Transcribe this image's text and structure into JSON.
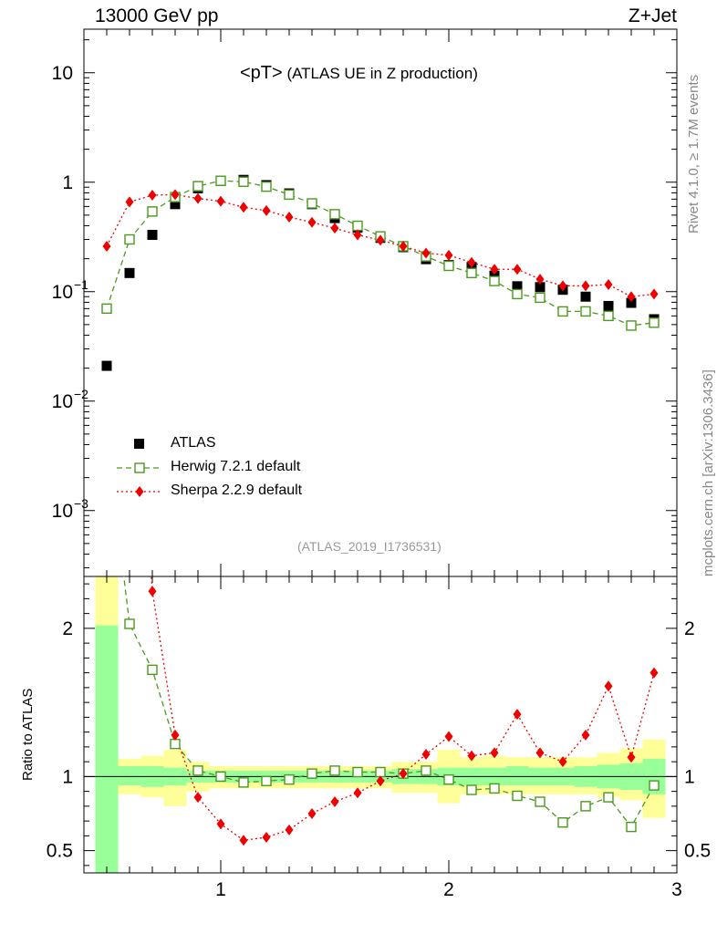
{
  "header": {
    "energy_label": "13000 GeV pp",
    "process_label": "Z+Jet"
  },
  "title": {
    "main": "<pT>",
    "sub": "(ATLAS UE in Z production)"
  },
  "analysis_id": "(ATLAS_2019_I1736531)",
  "side_texts": {
    "rivet": "Rivet 4.1.0, ≥ 1.7M events",
    "mcplots": "mcplots.cern.ch [arXiv:1306.3436]"
  },
  "legend": {
    "items": [
      {
        "name": "ATLAS",
        "color": "#000000",
        "marker": "filled-square"
      },
      {
        "name": "Herwig 7.2.1 default",
        "color": "#4a9a1e",
        "marker": "open-square"
      },
      {
        "name": "Sherpa 2.2.9 default",
        "color": "#ee0000",
        "marker": "filled-diamond"
      }
    ]
  },
  "chart_data": {
    "type": "scatter",
    "xlim": [
      0.4,
      3.0
    ],
    "main_panel": {
      "yscale": "log",
      "ylim": [
        0.00025,
        25
      ],
      "ytick_labels": [
        {
          "value": 10,
          "label": "10"
        },
        {
          "value": 1,
          "label": "1"
        },
        {
          "value": 0.1,
          "label": "10",
          "exp": "−1"
        },
        {
          "value": 0.01,
          "label": "10",
          "exp": "−2"
        },
        {
          "value": 0.001,
          "label": "10",
          "exp": "−3"
        }
      ]
    },
    "ratio_panel": {
      "ylabel": "Ratio to ATLAS",
      "ylim": [
        0.35,
        2.35
      ],
      "ytick_labels": [
        {
          "value": 2,
          "label": "2"
        },
        {
          "value": 1,
          "label": "1"
        },
        {
          "value": 0.5,
          "label": "0.5"
        }
      ]
    },
    "xtick_labels": [
      {
        "value": 1,
        "label": "1"
      },
      {
        "value": 2,
        "label": "2"
      },
      {
        "value": 3,
        "label": "3"
      }
    ],
    "x": [
      0.5,
      0.6,
      0.7,
      0.8,
      0.9,
      1.0,
      1.1,
      1.2,
      1.3,
      1.4,
      1.5,
      1.6,
      1.7,
      1.8,
      1.9,
      2.0,
      2.1,
      2.2,
      2.3,
      2.4,
      2.5,
      2.6,
      2.7,
      2.8,
      2.9
    ],
    "series": [
      {
        "name": "ATLAS",
        "values": [
          0.021,
          0.148,
          0.33,
          0.63,
          0.88,
          1.03,
          1.05,
          0.94,
          0.79,
          0.63,
          0.47,
          0.385,
          0.31,
          0.255,
          0.198,
          0.175,
          0.168,
          0.14,
          0.112,
          0.11,
          0.104,
          0.09,
          0.074,
          0.079,
          0.056
        ]
      },
      {
        "name": "Herwig 7.2.1 default",
        "values": [
          0.07,
          0.3,
          0.54,
          0.73,
          0.92,
          1.03,
          1.01,
          0.91,
          0.77,
          0.64,
          0.51,
          0.4,
          0.32,
          0.26,
          0.21,
          0.172,
          0.148,
          0.125,
          0.095,
          0.088,
          0.066,
          0.066,
          0.06,
          0.049,
          0.052
        ]
      },
      {
        "name": "Sherpa 2.2.9 default",
        "values": [
          0.26,
          0.66,
          0.76,
          0.77,
          0.71,
          0.67,
          0.59,
          0.55,
          0.48,
          0.43,
          0.38,
          0.33,
          0.295,
          0.26,
          0.225,
          0.215,
          0.185,
          0.16,
          0.16,
          0.13,
          0.113,
          0.113,
          0.116,
          0.09,
          0.095
        ]
      }
    ],
    "ratio_series": [
      {
        "name": "Herwig 7.2.1 default",
        "values": [
          3.3,
          2.03,
          1.72,
          1.22,
          1.04,
          1.0,
          0.96,
          0.97,
          0.98,
          1.02,
          1.04,
          1.03,
          1.03,
          1.02,
          1.04,
          0.98,
          0.91,
          0.92,
          0.87,
          0.83,
          0.69,
          0.8,
          0.86,
          0.66,
          0.94
        ]
      },
      {
        "name": "Sherpa 2.2.9 default",
        "values": [
          12.0,
          4.4,
          2.25,
          1.28,
          0.86,
          0.68,
          0.57,
          0.59,
          0.64,
          0.75,
          0.83,
          0.89,
          0.97,
          1.02,
          1.15,
          1.27,
          1.14,
          1.16,
          1.42,
          1.16,
          1.1,
          1.28,
          1.61,
          1.13,
          1.7
        ]
      }
    ],
    "ratio_band_stat": [
      [
        0.3,
        2.02
      ],
      [
        0.94,
        1.07
      ],
      [
        0.93,
        1.07
      ],
      [
        0.94,
        1.06
      ],
      [
        0.96,
        1.04
      ],
      [
        0.96,
        1.04
      ],
      [
        0.96,
        1.04
      ],
      [
        0.96,
        1.04
      ],
      [
        0.96,
        1.04
      ],
      [
        0.96,
        1.04
      ],
      [
        0.96,
        1.04
      ],
      [
        0.96,
        1.04
      ],
      [
        0.96,
        1.04
      ],
      [
        0.95,
        1.05
      ],
      [
        0.95,
        1.05
      ],
      [
        0.94,
        1.06
      ],
      [
        0.94,
        1.06
      ],
      [
        0.94,
        1.06
      ],
      [
        0.94,
        1.07
      ],
      [
        0.94,
        1.06
      ],
      [
        0.94,
        1.06
      ],
      [
        0.93,
        1.07
      ],
      [
        0.92,
        1.08
      ],
      [
        0.91,
        1.09
      ],
      [
        0.88,
        1.12
      ]
    ],
    "ratio_band_total": [
      [
        0.3,
        3.0
      ],
      [
        0.88,
        1.12
      ],
      [
        0.86,
        1.14
      ],
      [
        0.8,
        1.18
      ],
      [
        0.9,
        1.1
      ],
      [
        0.92,
        1.07
      ],
      [
        0.92,
        1.07
      ],
      [
        0.92,
        1.07
      ],
      [
        0.92,
        1.07
      ],
      [
        0.92,
        1.07
      ],
      [
        0.92,
        1.07
      ],
      [
        0.92,
        1.07
      ],
      [
        0.92,
        1.07
      ],
      [
        0.89,
        1.1
      ],
      [
        0.89,
        1.1
      ],
      [
        0.82,
        1.18
      ],
      [
        0.88,
        1.13
      ],
      [
        0.88,
        1.14
      ],
      [
        0.88,
        1.13
      ],
      [
        0.88,
        1.13
      ],
      [
        0.88,
        1.13
      ],
      [
        0.88,
        1.13
      ],
      [
        0.86,
        1.16
      ],
      [
        0.84,
        1.19
      ],
      [
        0.72,
        1.25
      ]
    ]
  }
}
